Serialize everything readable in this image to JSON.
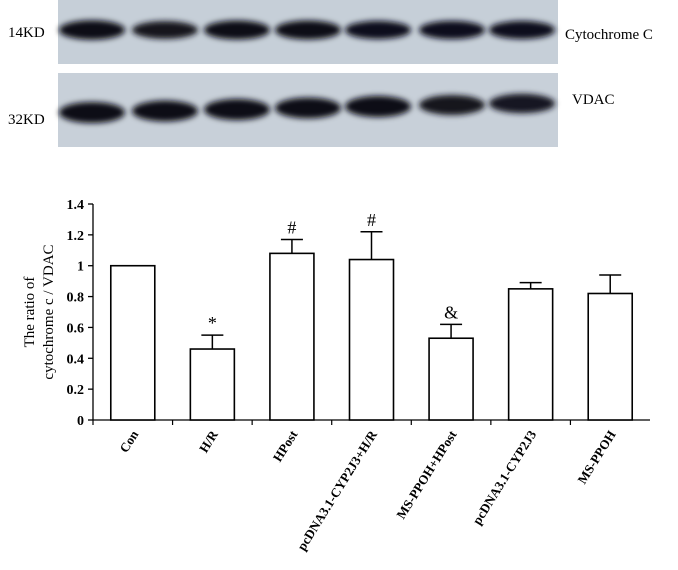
{
  "blots": {
    "rows": [
      {
        "protein": "Cytochrome C",
        "mw": "14KD",
        "intensities": [
          0.95,
          0.72,
          0.88,
          0.88,
          0.78,
          0.8,
          0.78
        ]
      },
      {
        "protein": "VDAC",
        "mw": "32KD",
        "intensities": [
          0.88,
          0.86,
          0.9,
          0.84,
          0.9,
          0.74,
          0.7
        ]
      }
    ]
  },
  "chart_data": {
    "type": "bar",
    "title": "",
    "xlabel": "",
    "ylabel_lines": [
      "The ratio of",
      "cytochrome c / VDAC"
    ],
    "categories": [
      "Con",
      "H/R",
      "HPost",
      "pcDNA3.1-CYP2J3+H/R",
      "MS-PPOH+HPost",
      "pcDNA3.1-CYP2J3",
      "MS-PPOH"
    ],
    "values": [
      1.0,
      0.46,
      1.08,
      1.04,
      0.53,
      0.85,
      0.82
    ],
    "errors": [
      0,
      0.09,
      0.09,
      0.18,
      0.09,
      0.04,
      0.12
    ],
    "significance": [
      "",
      "*",
      "#",
      "#",
      "&",
      "",
      ""
    ],
    "ylim": [
      0,
      1.4
    ],
    "yticks": [
      "0",
      "0.2",
      "0.4",
      "0.6",
      "0.8",
      "1",
      "1.2",
      "1.4"
    ],
    "grid": false,
    "bar_color": "#ffffff",
    "edge_color": "#000000"
  }
}
